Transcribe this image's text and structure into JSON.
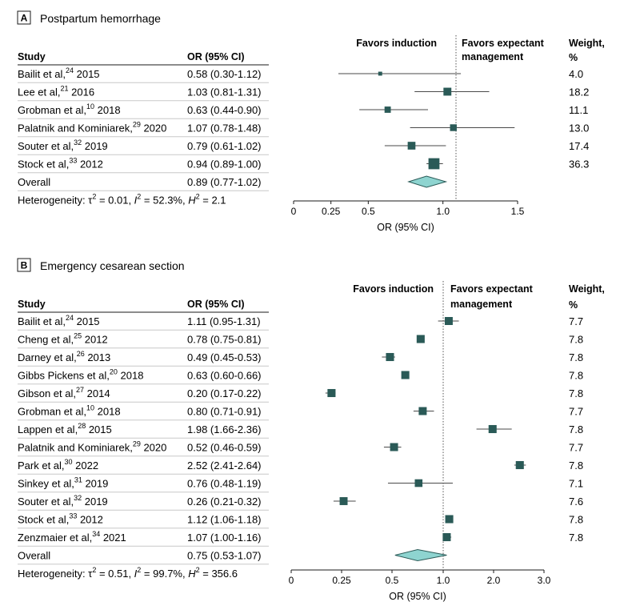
{
  "colors": {
    "marker": "#2a5a57",
    "diamond_fill": "#8ed4d0",
    "diamond_stroke": "#2a5a57"
  },
  "chart_data": [
    {
      "type": "forest",
      "panel": "A",
      "title": "Postpartum hemorrhage",
      "col_study": "Study",
      "col_or": "OR (95% CI)",
      "favors_left": "Favors induction",
      "favors_right": [
        "Favors expectant",
        "management"
      ],
      "weight_header": [
        "Weight,",
        "%"
      ],
      "xlabel": "OR (95% CI)",
      "xlim": [
        0,
        1.5
      ],
      "null_value": 1,
      "ticks": [
        0,
        0.25,
        0.5,
        1.0,
        1.5
      ],
      "tick_labels": [
        "0",
        "0.25",
        "0.5",
        "1.0",
        "1.5"
      ],
      "studies": [
        {
          "name": "Bailit et al,",
          "ref": "24",
          "year": "2015",
          "or": 0.58,
          "lo": 0.3,
          "hi": 1.12,
          "or_text": "0.58 (0.30-1.12)",
          "weight": "4.0"
        },
        {
          "name": "Lee et al,",
          "ref": "21",
          "year": "2016",
          "or": 1.03,
          "lo": 0.81,
          "hi": 1.31,
          "or_text": "1.03 (0.81-1.31)",
          "weight": "18.2"
        },
        {
          "name": "Grobman et al,",
          "ref": "10",
          "year": "2018",
          "or": 0.63,
          "lo": 0.44,
          "hi": 0.9,
          "or_text": "0.63 (0.44-0.90)",
          "weight": "11.1"
        },
        {
          "name": "Palatnik and Kominiarek,",
          "ref": "29",
          "year": "2020",
          "or": 1.07,
          "lo": 0.78,
          "hi": 1.48,
          "or_text": "1.07 (0.78-1.48)",
          "weight": "13.0"
        },
        {
          "name": "Souter et al,",
          "ref": "32",
          "year": "2019",
          "or": 0.79,
          "lo": 0.61,
          "hi": 1.02,
          "or_text": "0.79 (0.61-1.02)",
          "weight": "17.4"
        },
        {
          "name": "Stock et al,",
          "ref": "33",
          "year": "2012",
          "or": 0.94,
          "lo": 0.89,
          "hi": 1.0,
          "or_text": "0.94 (0.89-1.00)",
          "weight": "36.3"
        }
      ],
      "overall": {
        "label": "Overall",
        "or": 0.89,
        "lo": 0.77,
        "hi": 1.02,
        "or_text": "0.89 (0.77-1.02)"
      },
      "heterogeneity": {
        "label": "Heterogeneity:",
        "tau2": "0.01",
        "i2": "52.3%",
        "h2": "2.1"
      }
    },
    {
      "type": "forest",
      "panel": "B",
      "title": "Emergency cesarean section",
      "col_study": "Study",
      "col_or": "OR (95% CI)",
      "favors_left": "Favors induction",
      "favors_right": [
        "Favors expectant",
        "management"
      ],
      "weight_header": [
        "Weight,",
        "%"
      ],
      "xlabel": "OR (95% CI)",
      "xlim": [
        0,
        3.0
      ],
      "null_value": 1,
      "ticks": [
        0,
        0.25,
        0.5,
        1.0,
        2.0,
        3.0
      ],
      "tick_labels": [
        "0",
        "0.25",
        "0.5",
        "1.0",
        "2.0",
        "3.0"
      ],
      "studies": [
        {
          "name": "Bailit et al,",
          "ref": "24",
          "year": "2015",
          "or": 1.11,
          "lo": 0.95,
          "hi": 1.31,
          "or_text": "1.11 (0.95-1.31)",
          "weight": "7.7"
        },
        {
          "name": "Cheng et al,",
          "ref": "25",
          "year": "2012",
          "or": 0.78,
          "lo": 0.75,
          "hi": 0.81,
          "or_text": "0.78 (0.75-0.81)",
          "weight": "7.8"
        },
        {
          "name": "Darney et al,",
          "ref": "26",
          "year": "2013",
          "or": 0.49,
          "lo": 0.45,
          "hi": 0.53,
          "or_text": "0.49 (0.45-0.53)",
          "weight": "7.8"
        },
        {
          "name": "Gibbs Pickens et al,",
          "ref": "20",
          "year": "2018",
          "or": 0.63,
          "lo": 0.6,
          "hi": 0.66,
          "or_text": "0.63 (0.60-0.66)",
          "weight": "7.8"
        },
        {
          "name": "Gibson et al,",
          "ref": "27",
          "year": "2014",
          "or": 0.2,
          "lo": 0.17,
          "hi": 0.22,
          "or_text": "0.20 (0.17-0.22)",
          "weight": "7.8"
        },
        {
          "name": "Grobman et al,",
          "ref": "10",
          "year": "2018",
          "or": 0.8,
          "lo": 0.71,
          "hi": 0.91,
          "or_text": "0.80 (0.71-0.91)",
          "weight": "7.7"
        },
        {
          "name": "Lappen et al,",
          "ref": "28",
          "year": "2015",
          "or": 1.98,
          "lo": 1.66,
          "hi": 2.36,
          "or_text": "1.98 (1.66-2.36)",
          "weight": "7.8"
        },
        {
          "name": "Palatnik and Kominiarek,",
          "ref": "29",
          "year": "2020",
          "or": 0.52,
          "lo": 0.46,
          "hi": 0.59,
          "or_text": "0.52 (0.46-0.59)",
          "weight": "7.7"
        },
        {
          "name": "Park et al,",
          "ref": "30",
          "year": "2022",
          "or": 2.52,
          "lo": 2.41,
          "hi": 2.64,
          "or_text": "2.52 (2.41-2.64)",
          "weight": "7.8"
        },
        {
          "name": "Sinkey et al,",
          "ref": "31",
          "year": "2019",
          "or": 0.76,
          "lo": 0.48,
          "hi": 1.19,
          "or_text": "0.76 (0.48-1.19)",
          "weight": "7.1"
        },
        {
          "name": "Souter et al,",
          "ref": "32",
          "year": "2019",
          "or": 0.26,
          "lo": 0.21,
          "hi": 0.32,
          "or_text": "0.26 (0.21-0.32)",
          "weight": "7.6"
        },
        {
          "name": "Stock et al,",
          "ref": "33",
          "year": "2012",
          "or": 1.12,
          "lo": 1.06,
          "hi": 1.18,
          "or_text": "1.12 (1.06-1.18)",
          "weight": "7.8"
        },
        {
          "name": "Zenzmaier et al,",
          "ref": "34",
          "year": "2021",
          "or": 1.07,
          "lo": 1.0,
          "hi": 1.16,
          "or_text": "1.07 (1.00-1.16)",
          "weight": "7.8"
        }
      ],
      "overall": {
        "label": "Overall",
        "or": 0.75,
        "lo": 0.53,
        "hi": 1.07,
        "or_text": "0.75 (0.53-1.07)"
      },
      "heterogeneity": {
        "label": "Heterogeneity:",
        "tau2": "0.51",
        "i2": "99.7%",
        "h2": "356.6"
      }
    }
  ]
}
